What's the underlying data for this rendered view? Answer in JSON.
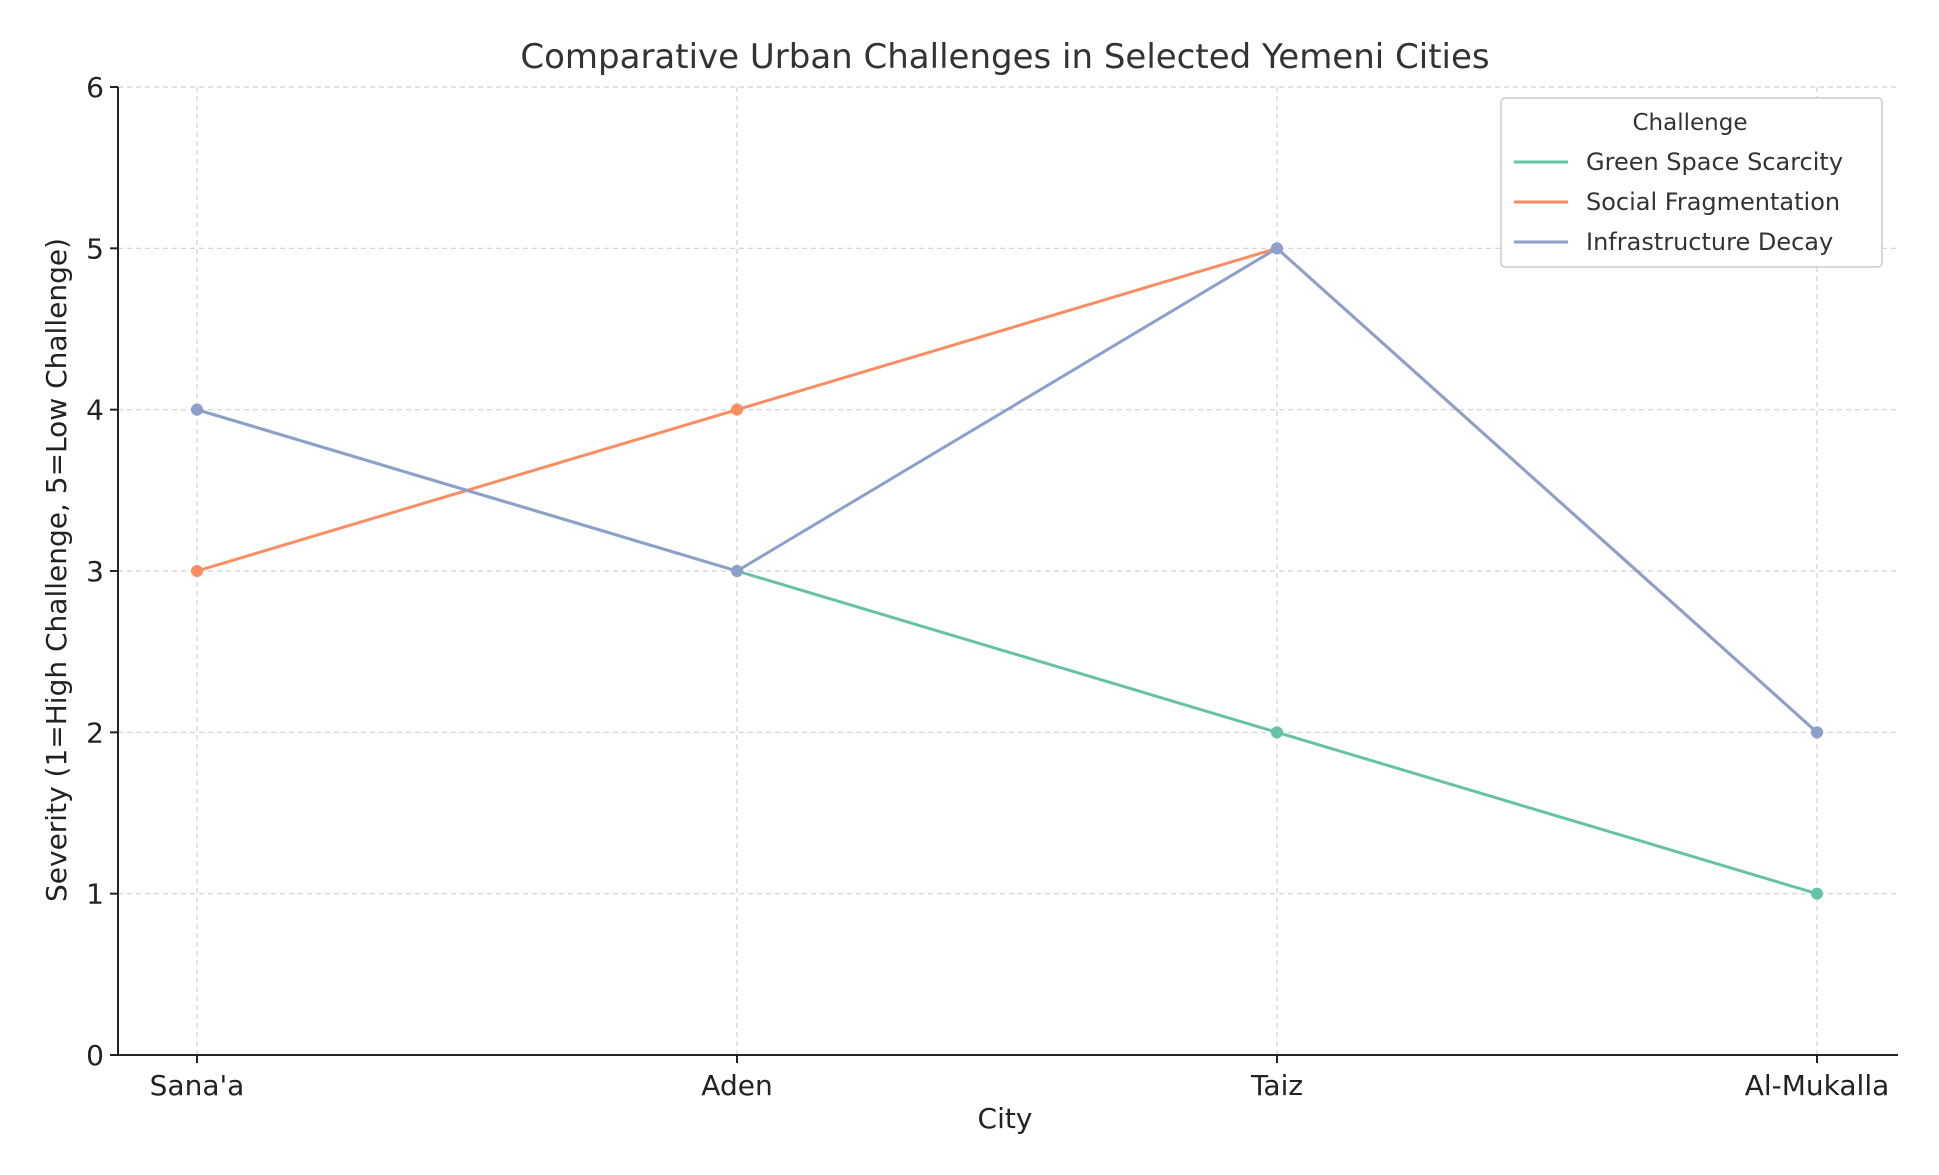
{
  "chart_data": {
    "type": "line",
    "title": "Comparative Urban Challenges in Selected Yemeni Cities",
    "xlabel": "City",
    "ylabel": "Severity (1=High Challenge, 5=Low Challenge)",
    "categories": [
      "Sana'a",
      "Aden",
      "Taiz",
      "Al-Mukalla"
    ],
    "ylim": [
      0,
      6
    ],
    "yticks": [
      "0",
      "1",
      "2",
      "3",
      "4",
      "5",
      "6"
    ],
    "grid": true,
    "legend": {
      "title": "Challenge",
      "placement": "top-right"
    },
    "series": [
      {
        "name": "Green Space Scarcity",
        "color": "#66c2a5",
        "values": [
          4,
          3,
          2,
          1
        ]
      },
      {
        "name": "Social Fragmentation",
        "color": "#fc8d62",
        "values": [
          3,
          4,
          5,
          2
        ]
      },
      {
        "name": "Infrastructure Decay",
        "color": "#8da0cb",
        "values": [
          4,
          3,
          5,
          2
        ]
      }
    ]
  }
}
